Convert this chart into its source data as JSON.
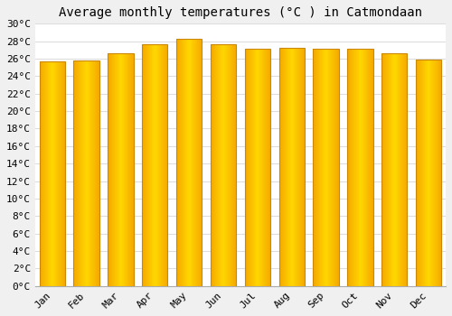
{
  "title": "Average monthly temperatures (°C ) in Catmondaan",
  "months": [
    "Jan",
    "Feb",
    "Mar",
    "Apr",
    "May",
    "Jun",
    "Jul",
    "Aug",
    "Sep",
    "Oct",
    "Nov",
    "Dec"
  ],
  "values": [
    25.7,
    25.8,
    26.6,
    27.7,
    28.3,
    27.7,
    27.1,
    27.2,
    27.1,
    27.1,
    26.6,
    25.9
  ],
  "bar_color_left": "#F5A800",
  "bar_color_center": "#FFD700",
  "bar_edge_color": "#CC8800",
  "ylim": [
    0,
    30
  ],
  "ytick_step": 2,
  "background_color": "#f0f0f0",
  "plot_bg_color": "#ffffff",
  "grid_color": "#dddddd",
  "title_fontsize": 10,
  "tick_fontsize": 8,
  "font_family": "monospace"
}
